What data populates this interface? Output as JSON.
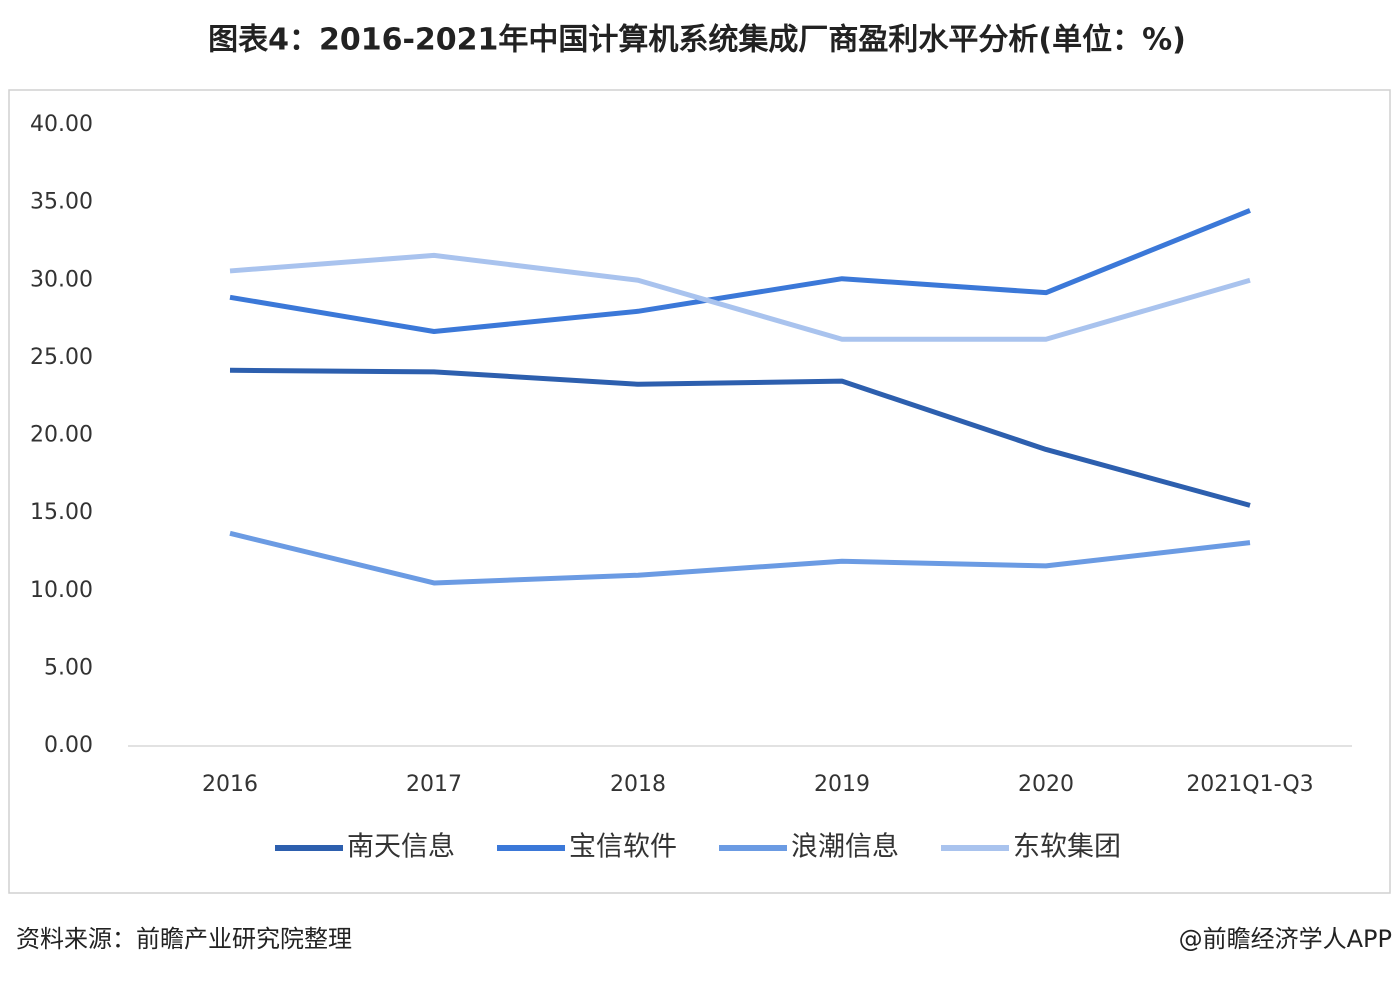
{
  "chart_data": {
    "type": "line",
    "title": "图表4：2016-2021年中国计算机系统集成厂商盈利水平分析(单位：%)",
    "categories": [
      "2016",
      "2017",
      "2018",
      "2019",
      "2020",
      "2021Q1-Q3"
    ],
    "series": [
      {
        "name": "南天信息",
        "color": "#2d5fae",
        "values": [
          24.2,
          24.1,
          23.3,
          23.5,
          19.1,
          15.5
        ]
      },
      {
        "name": "宝信软件",
        "color": "#3b78d8",
        "values": [
          28.9,
          26.7,
          28.0,
          30.1,
          29.2,
          34.5
        ]
      },
      {
        "name": "浪潮信息",
        "color": "#6b9be3",
        "values": [
          13.7,
          10.5,
          11.0,
          11.9,
          11.6,
          13.1
        ]
      },
      {
        "name": "东软集团",
        "color": "#a9c3ee",
        "values": [
          30.6,
          31.6,
          30.0,
          26.2,
          26.2,
          30.0
        ]
      }
    ],
    "ylim": [
      0,
      40
    ],
    "yticks": [
      {
        "value": 0,
        "label": "0.00"
      },
      {
        "value": 5,
        "label": "5.00"
      },
      {
        "value": 10,
        "label": "10.00"
      },
      {
        "value": 15,
        "label": "15.00"
      },
      {
        "value": 20,
        "label": "20.00"
      },
      {
        "value": 25,
        "label": "25.00"
      },
      {
        "value": 30,
        "label": "30.00"
      },
      {
        "value": 35,
        "label": "35.00"
      },
      {
        "value": 40,
        "label": "40.00"
      }
    ],
    "legend": "bottom"
  },
  "source": "资料来源：前瞻产业研究院整理",
  "credit": "@前瞻经济学人APP"
}
